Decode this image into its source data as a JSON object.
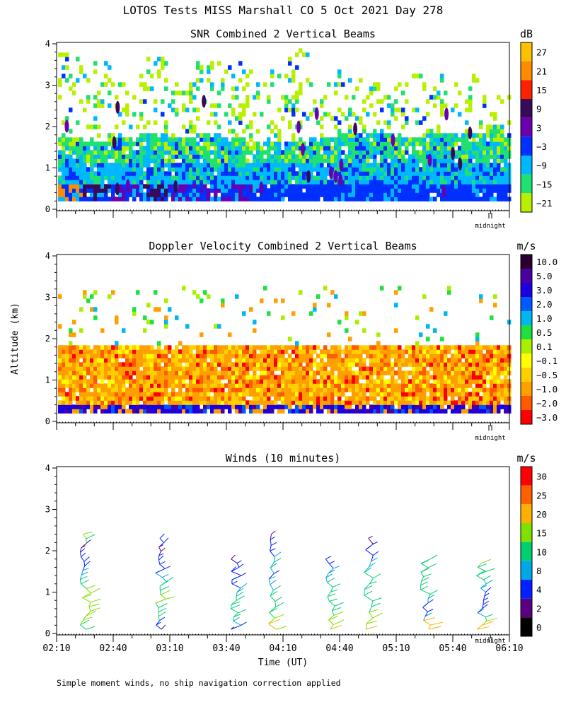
{
  "figure": {
    "title": "LOTOS Tests MISS Marshall CO   5 Oct 2021 Day 278",
    "ylabel": "Altitude (km)",
    "xlabel": "Time (UT)",
    "footnote": "Simple moment winds, no ship navigation correction applied",
    "midnight_label": "midnight",
    "x_tick_labels": [
      "02:10",
      "02:40",
      "03:10",
      "03:40",
      "04:10",
      "04:40",
      "05:10",
      "05:40",
      "06:10"
    ],
    "y_tick_labels": [
      "0",
      "1",
      "2",
      "3",
      "4"
    ]
  },
  "chart_data": [
    {
      "type": "heatmap",
      "title": "SNR Combined 2 Vertical Beams",
      "colorbar": {
        "unit": "dB",
        "labels": [
          "27",
          "21",
          "15",
          "9",
          "3",
          "−3",
          "−9",
          "−15",
          "−21"
        ],
        "colors": [
          "#FFC000",
          "#FF8C00",
          "#FF2000",
          "#3A0A5A",
          "#6A00B0",
          "#0030FF",
          "#00B8FF",
          "#20E070",
          "#B8F000"
        ]
      },
      "x_range": [
        "02:10",
        "06:10"
      ],
      "ylim_km": [
        0,
        4
      ],
      "valid_altitude_km": [
        0.2,
        3.9
      ],
      "profiles": [
        {
          "time": "02:15",
          "top_dense_km": 1.7,
          "top_sparse_km": 3.7,
          "near_surface_db": 21
        },
        {
          "time": "02:30",
          "top_dense_km": 1.6,
          "top_sparse_km": 3.5,
          "near_surface_db": 9
        },
        {
          "time": "02:45",
          "top_dense_km": 1.7,
          "top_sparse_km": 3.0,
          "near_surface_db": 3
        },
        {
          "time": "03:00",
          "top_dense_km": 1.8,
          "top_sparse_km": 3.6,
          "near_surface_db": 9
        },
        {
          "time": "03:15",
          "top_dense_km": 1.7,
          "top_sparse_km": 3.0,
          "near_surface_db": 3
        },
        {
          "time": "03:30",
          "top_dense_km": 1.8,
          "top_sparse_km": 3.5,
          "near_surface_db": 3
        },
        {
          "time": "03:45",
          "top_dense_km": 1.7,
          "top_sparse_km": 3.5,
          "near_surface_db": 3
        },
        {
          "time": "04:00",
          "top_dense_km": 1.6,
          "top_sparse_km": 3.3,
          "near_surface_db": -3
        },
        {
          "time": "04:15",
          "top_dense_km": 1.6,
          "top_sparse_km": 3.9,
          "near_surface_db": -3
        },
        {
          "time": "04:30",
          "top_dense_km": 1.7,
          "top_sparse_km": 3.0,
          "near_surface_db": -3
        },
        {
          "time": "04:45",
          "top_dense_km": 1.8,
          "top_sparse_km": 3.3,
          "near_surface_db": -3
        },
        {
          "time": "05:00",
          "top_dense_km": 1.8,
          "top_sparse_km": 3.3,
          "near_surface_db": -3
        },
        {
          "time": "05:15",
          "top_dense_km": 1.7,
          "top_sparse_km": 3.2,
          "near_surface_db": -3
        },
        {
          "time": "05:30",
          "top_dense_km": 1.8,
          "top_sparse_km": 3.2,
          "near_surface_db": -3
        },
        {
          "time": "05:45",
          "top_dense_km": 1.8,
          "top_sparse_km": 3.2,
          "near_surface_db": -3
        },
        {
          "time": "06:00",
          "top_dense_km": 1.8,
          "top_sparse_km": 2.7,
          "near_surface_db": -3
        }
      ]
    },
    {
      "type": "heatmap",
      "title": "Doppler Velocity Combined 2 Vertical Beams",
      "colorbar": {
        "unit": "m/s",
        "labels": [
          "10.0",
          "5.0",
          "3.0",
          "2.0",
          "1.0",
          "0.5",
          "0.1",
          "−0.1",
          "−0.5",
          "−1.0",
          "−2.0",
          "−3.0"
        ],
        "colors": [
          "#2A0030",
          "#4A00A0",
          "#1C00E0",
          "#0058FF",
          "#00B8F0",
          "#20E040",
          "#A8F000",
          "#FFFF00",
          "#FFD000",
          "#FFA000",
          "#FF5A00",
          "#FF0000"
        ]
      },
      "x_range": [
        "02:10",
        "06:10"
      ],
      "ylim_km": [
        0,
        4
      ],
      "typical_boundary_layer_mps": -0.5,
      "near_surface_mps": 5.0,
      "top_dense_km": 1.8
    },
    {
      "type": "line",
      "title": "Winds (10 minutes)",
      "colorbar": {
        "unit": "m/s",
        "labels": [
          "30",
          "25",
          "20",
          "15",
          "10",
          "8",
          "4",
          "2",
          "0"
        ],
        "colors": [
          "#FF0000",
          "#FF6000",
          "#FFB000",
          "#80E000",
          "#00D070",
          "#00A8E8",
          "#0020FF",
          "#5A0080",
          "#000000"
        ]
      },
      "x_range": [
        "02:10",
        "06:10"
      ],
      "ylim_km": [
        0,
        4
      ],
      "profiles": [
        {
          "time": "02:20",
          "top_km": 2.4,
          "speeds": [
            14,
            14,
            15,
            16,
            16,
            18,
            17,
            16,
            15,
            15,
            12,
            10,
            8,
            8,
            6,
            6,
            4,
            4,
            3,
            3,
            14,
            15
          ]
        },
        {
          "time": "03:00",
          "top_km": 2.3,
          "speeds": [
            3,
            4,
            6,
            10,
            12,
            14,
            14,
            15,
            15,
            14,
            12,
            10,
            8,
            8,
            6,
            6,
            4,
            4,
            3,
            3,
            4,
            4
          ]
        },
        {
          "time": "03:40",
          "top_km": 1.8,
          "speeds": [
            0,
            6,
            8,
            10,
            12,
            14,
            14,
            12,
            10,
            8,
            8,
            6,
            6,
            4,
            4,
            4,
            4,
            3
          ]
        },
        {
          "time": "04:00",
          "top_km": 2.4,
          "speeds": [
            18,
            20,
            15,
            12,
            12,
            10,
            10,
            10,
            8,
            8,
            6,
            8,
            10,
            8,
            6,
            6,
            4,
            3
          ]
        },
        {
          "time": "04:30",
          "top_km": 1.8,
          "speeds": [
            20,
            18,
            16,
            15,
            14,
            14,
            12,
            12,
            10,
            10,
            10,
            8,
            8,
            8,
            6,
            6
          ]
        },
        {
          "time": "04:50",
          "top_km": 2.3,
          "speeds": [
            20,
            18,
            16,
            15,
            14,
            14,
            12,
            12,
            10,
            10,
            10,
            8,
            8,
            6,
            6,
            4,
            3
          ]
        },
        {
          "time": "05:20",
          "top_km": 1.8,
          "speeds": [
            22,
            22,
            20,
            8,
            6,
            4,
            6,
            8,
            10,
            10,
            10,
            12,
            12,
            12,
            12,
            10,
            10
          ]
        },
        {
          "time": "05:50",
          "top_km": 1.7,
          "speeds": [
            22,
            20,
            18,
            10,
            8,
            6,
            6,
            4,
            4,
            6,
            8,
            8,
            10,
            12,
            14,
            14,
            16
          ]
        }
      ]
    }
  ]
}
